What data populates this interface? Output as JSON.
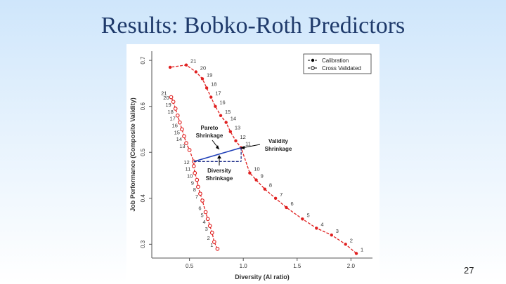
{
  "slide": {
    "title": "Results: Bobko-Roth Predictors",
    "page_number": "27"
  },
  "chart_data": {
    "type": "line",
    "xlabel": "Diversity (AI ratio)",
    "ylabel": "Job Performance (Composite Validity)",
    "xlim": [
      0.15,
      2.2
    ],
    "ylim": [
      0.27,
      0.72
    ],
    "xticks": [
      "0.5",
      "1.0",
      "1.5",
      "2.0"
    ],
    "xtick_values": [
      0.5,
      1.0,
      1.5,
      2.0
    ],
    "yticks": [
      "0.3",
      "0.4",
      "0.5",
      "0.6",
      "0.7"
    ],
    "ytick_values": [
      0.3,
      0.4,
      0.5,
      0.6,
      0.7
    ],
    "legend_position": "top-right",
    "grid": false,
    "series": [
      {
        "name": "Calibration",
        "color": "#e02020",
        "marker": "filled",
        "x": [
          2.05,
          1.95,
          1.82,
          1.68,
          1.55,
          1.4,
          1.3,
          1.2,
          1.12,
          1.06,
          0.98,
          0.93,
          0.88,
          0.84,
          0.79,
          0.74,
          0.7,
          0.66,
          0.62,
          0.56,
          0.47,
          0.32
        ],
        "y": [
          0.28,
          0.3,
          0.32,
          0.335,
          0.355,
          0.38,
          0.4,
          0.42,
          0.44,
          0.455,
          0.51,
          0.525,
          0.545,
          0.565,
          0.58,
          0.6,
          0.62,
          0.64,
          0.66,
          0.675,
          0.69,
          0.685
        ],
        "labels": [
          "1",
          "2",
          "3",
          "4",
          "5",
          "6",
          "7",
          "8",
          "9",
          "10",
          "11",
          "12",
          "13",
          "14",
          "15",
          "16",
          "17",
          "18",
          "19",
          "20",
          "21",
          ""
        ]
      },
      {
        "name": "Cross Validated",
        "color": "#e02020",
        "marker": "open",
        "x": [
          0.76,
          0.73,
          0.71,
          0.69,
          0.67,
          0.65,
          0.62,
          0.6,
          0.58,
          0.57,
          0.55,
          0.54,
          0.54,
          0.5,
          0.47,
          0.45,
          0.43,
          0.41,
          0.39,
          0.37,
          0.35,
          0.33
        ],
        "y": [
          0.29,
          0.305,
          0.325,
          0.34,
          0.355,
          0.37,
          0.395,
          0.41,
          0.425,
          0.44,
          0.455,
          0.47,
          0.48,
          0.505,
          0.52,
          0.535,
          0.55,
          0.565,
          0.58,
          0.595,
          0.61,
          0.62
        ],
        "labels": [
          "1",
          "2",
          "3",
          "4",
          "5",
          "6",
          "7",
          "8",
          "9",
          "10",
          "11",
          "12",
          "",
          "13",
          "14",
          "15",
          "16",
          "17",
          "18",
          "19",
          "20",
          "21"
        ]
      }
    ],
    "annotations": [
      {
        "text": "Pareto",
        "text2": "Shrinkage"
      },
      {
        "text": "Validity",
        "text2": "Shrinkage"
      },
      {
        "text": "Diversity",
        "text2": "Shrinkage"
      }
    ]
  }
}
